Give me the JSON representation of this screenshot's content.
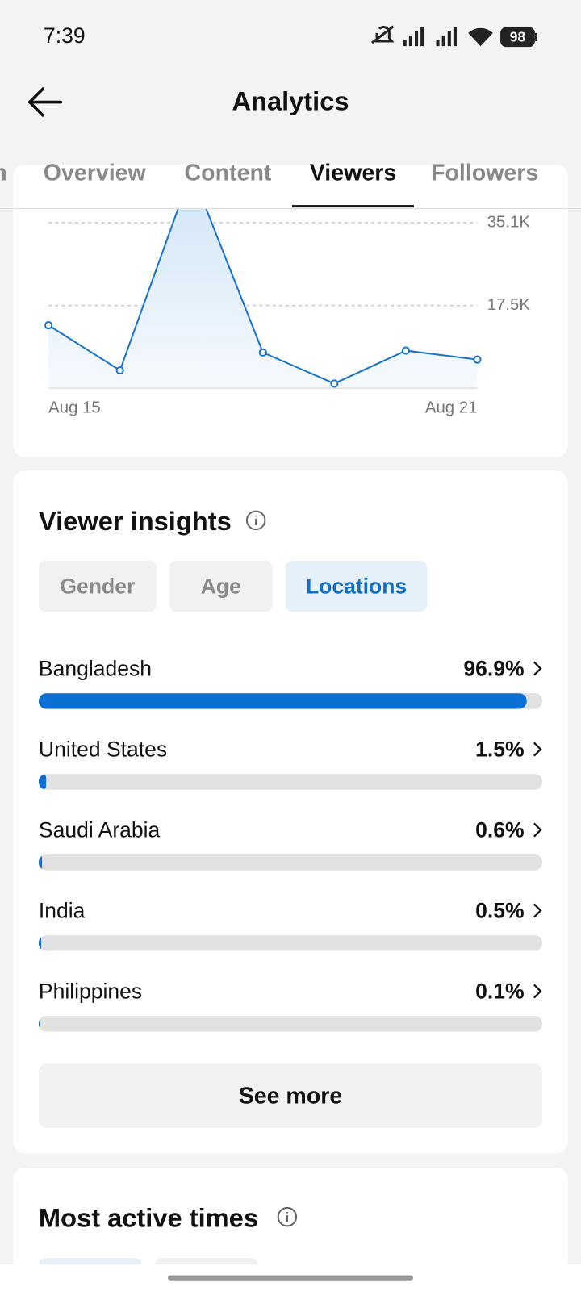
{
  "status_bar": {
    "time": "7:39",
    "battery": "98"
  },
  "header": {
    "title": "Analytics"
  },
  "tabs": {
    "items": [
      "n",
      "Overview",
      "Content",
      "Viewers",
      "Followers"
    ],
    "selected_index": 3
  },
  "chart_data": {
    "type": "line",
    "categories": [
      "Aug 15",
      null,
      null,
      null,
      null,
      null,
      "Aug 21"
    ],
    "series": [
      {
        "color": "#1a74c9",
        "values": [
          13300,
          3700,
          46000,
          7500,
          900,
          7900,
          6000
        ]
      }
    ],
    "ylim": [
      0,
      38000
    ],
    "yticks": [
      {
        "value": 17500,
        "label": "17.5K"
      },
      {
        "value": 35100,
        "label": "35.1K"
      }
    ],
    "grid": true
  },
  "viewer_insights": {
    "title": "Viewer insights",
    "filters": [
      "Gender",
      "Age",
      "Locations"
    ],
    "selected_index": 2,
    "locations": {
      "xlim": [
        0,
        100
      ],
      "color": "#0b6fd6",
      "items": [
        {
          "name": "Bangladesh",
          "value": 96.9,
          "value_label": "96.9%"
        },
        {
          "name": "United States",
          "value": 1.5,
          "value_label": "1.5%"
        },
        {
          "name": "Saudi Arabia",
          "value": 0.6,
          "value_label": "0.6%"
        },
        {
          "name": "India",
          "value": 0.5,
          "value_label": "0.5%"
        },
        {
          "name": "Philippines",
          "value": 0.1,
          "value_label": "0.1%"
        }
      ]
    },
    "see_more": "See more"
  },
  "most_active_times": {
    "title": "Most active times"
  }
}
